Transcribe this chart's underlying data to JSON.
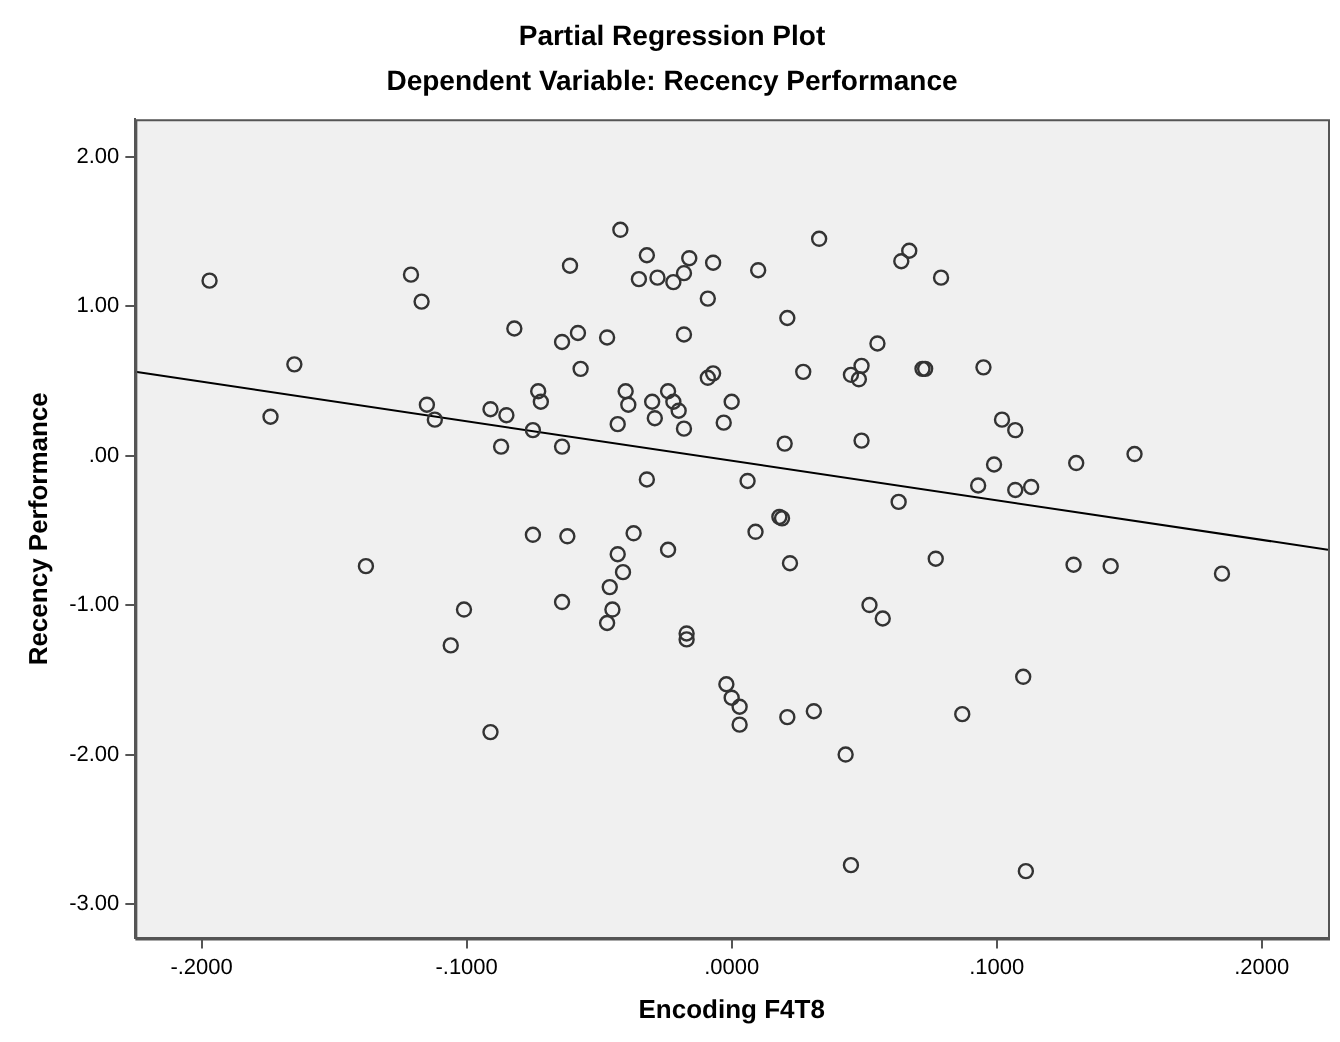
{
  "chart_data": {
    "type": "scatter",
    "title": "Partial Regression Plot",
    "subtitle": "Dependent Variable: Recency Performance",
    "xlabel": "Encoding F4T8",
    "ylabel": "Recency Performance",
    "xlim": [
      -0.225,
      0.225
    ],
    "ylim": [
      -3.23,
      2.25
    ],
    "xticks": [
      {
        "value": -0.2,
        "label": "-.2000"
      },
      {
        "value": -0.1,
        "label": "-.1000"
      },
      {
        "value": 0,
        "label": ".0000"
      },
      {
        "value": 0.1,
        "label": ".1000"
      },
      {
        "value": 0.2,
        "label": ".2000"
      }
    ],
    "yticks": [
      {
        "value": -3,
        "label": "-3.00"
      },
      {
        "value": -2,
        "label": "-2.00"
      },
      {
        "value": -1,
        "label": "-1.00"
      },
      {
        "value": 0,
        "label": ".00"
      },
      {
        "value": 1,
        "label": "1.00"
      },
      {
        "value": 2,
        "label": "2.00"
      }
    ],
    "grid": false,
    "legend": false,
    "series": [
      {
        "marker": "circle",
        "color": "#333333",
        "x": [
          -0.197,
          -0.121,
          -0.117,
          -0.082,
          -0.165,
          -0.174,
          -0.115,
          -0.112,
          -0.091,
          -0.085,
          -0.087,
          -0.075,
          -0.073,
          -0.072,
          -0.042,
          -0.061,
          -0.032,
          -0.035,
          -0.028,
          -0.022,
          -0.018,
          -0.016,
          -0.007,
          -0.009,
          0.01,
          0.033,
          0.021,
          0.064,
          0.067,
          0.079,
          -0.064,
          -0.058,
          -0.047,
          -0.018,
          -0.057,
          0.055,
          0.027,
          0.045,
          0.048,
          0.049,
          -0.009,
          -0.007,
          0.072,
          0.073,
          -0.04,
          -0.039,
          -0.03,
          -0.024,
          -0.022,
          -0.02,
          -0.029,
          -0.043,
          -0.018,
          -0.003,
          0.0,
          -0.064,
          0.02,
          0.049,
          -0.032,
          0.006,
          0.063,
          0.018,
          0.019,
          0.095,
          0.102,
          0.107,
          0.099,
          0.13,
          0.152,
          0.093,
          0.107,
          0.113,
          -0.075,
          -0.138,
          -0.101,
          -0.106,
          -0.091,
          -0.062,
          -0.037,
          -0.024,
          -0.043,
          -0.041,
          -0.046,
          -0.064,
          -0.045,
          -0.047,
          -0.017,
          -0.017,
          0.009,
          0.022,
          0.077,
          0.052,
          0.057,
          -0.002,
          0.0,
          0.003,
          0.003,
          0.021,
          0.031,
          0.043,
          0.045,
          0.129,
          0.143,
          0.185,
          0.11,
          0.087,
          0.111
        ],
        "values": [
          1.17,
          1.21,
          1.03,
          0.85,
          0.61,
          0.26,
          0.34,
          0.24,
          0.31,
          0.27,
          0.06,
          0.17,
          0.43,
          0.36,
          1.51,
          1.27,
          1.34,
          1.18,
          1.19,
          1.16,
          1.22,
          1.32,
          1.29,
          1.05,
          1.24,
          1.45,
          0.92,
          1.3,
          1.37,
          1.19,
          0.76,
          0.82,
          0.79,
          0.81,
          0.58,
          0.75,
          0.56,
          0.54,
          0.51,
          0.6,
          0.52,
          0.55,
          0.58,
          0.58,
          0.43,
          0.34,
          0.36,
          0.43,
          0.36,
          0.3,
          0.25,
          0.21,
          0.18,
          0.22,
          0.36,
          0.06,
          0.08,
          0.1,
          -0.16,
          -0.17,
          -0.31,
          -0.41,
          -0.42,
          0.59,
          0.24,
          0.17,
          -0.06,
          -0.05,
          0.01,
          -0.2,
          -0.23,
          -0.21,
          -0.53,
          -0.74,
          -1.03,
          -1.27,
          -1.85,
          -0.54,
          -0.52,
          -0.63,
          -0.66,
          -0.78,
          -0.88,
          -0.98,
          -1.03,
          -1.12,
          -1.19,
          -1.23,
          -0.51,
          -0.72,
          -0.69,
          -1.0,
          -1.09,
          -1.53,
          -1.62,
          -1.68,
          -1.8,
          -1.75,
          -1.71,
          -2.0,
          -2.74,
          -0.73,
          -0.74,
          -0.79,
          -1.48,
          -1.73,
          -2.78
        ]
      },
      {
        "type": "line",
        "color": "#000000",
        "x": [
          -0.225,
          0.225
        ],
        "values": [
          0.56,
          -0.63
        ]
      }
    ]
  }
}
